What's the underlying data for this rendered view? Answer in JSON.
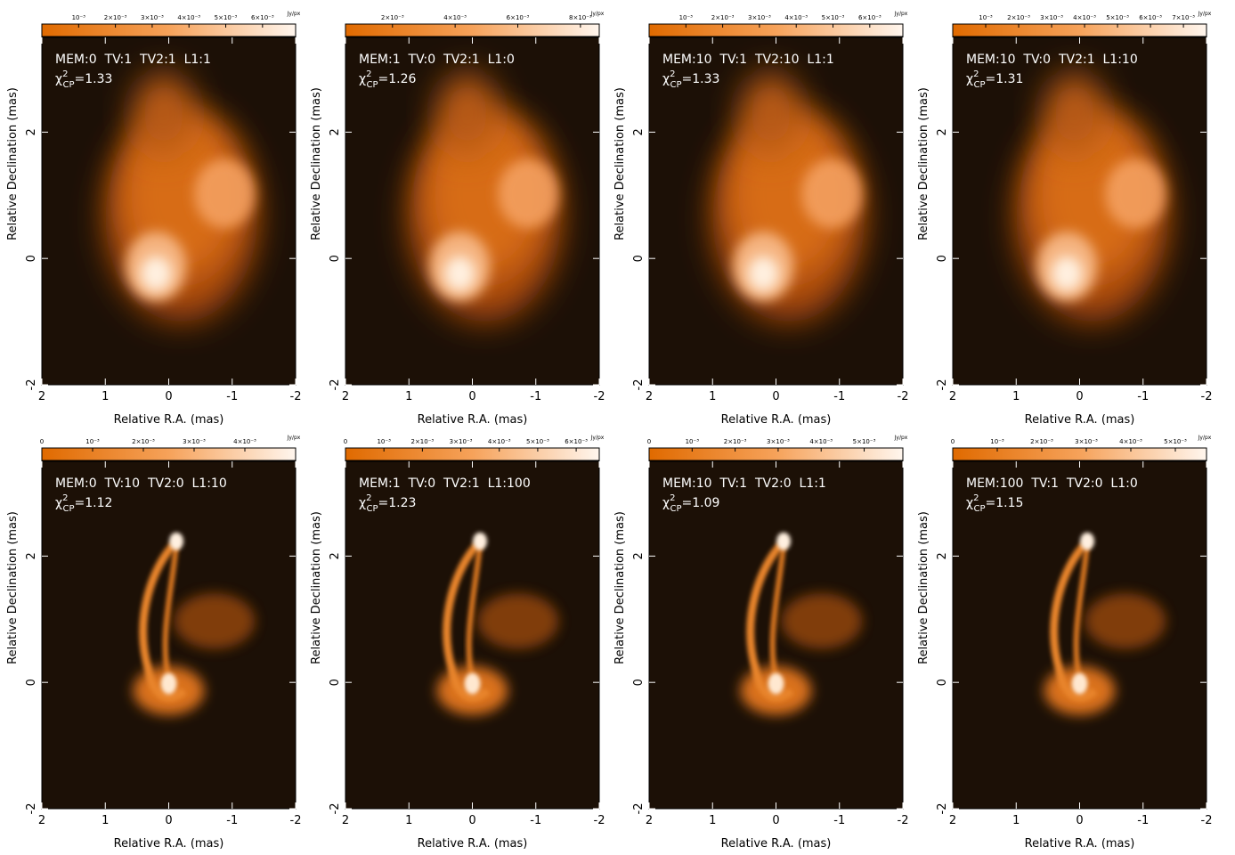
{
  "shared": {
    "stat_symbol": "χ",
    "stat_sup": "2",
    "stat_sub": "CP",
    "stat_sep": "="
  },
  "chart_data": [
    {
      "type": "image",
      "annotation": "MEM:0  TV:1  TV2:1  L1:1",
      "chi2_cp": 1.33,
      "xlabel": "Relative R.A. (mas)",
      "ylabel": "Relative Declination (mas)",
      "xlim": [
        2,
        -2
      ],
      "ylim": [
        -2,
        3.5
      ],
      "xticks": [
        2,
        1,
        0,
        -1,
        -2
      ],
      "yticks": [
        -2,
        0,
        2
      ],
      "colorbar": {
        "unit": "Jy/px",
        "lim": [
          0,
          0.0069
        ],
        "ticks": [
          {
            "value": 0.001,
            "label": "10⁻³"
          },
          {
            "value": 0.002,
            "label": "2×10⁻³"
          },
          {
            "value": 0.003,
            "label": "3×10⁻³"
          },
          {
            "value": 0.004,
            "label": "4×10⁻³"
          },
          {
            "value": 0.005,
            "label": "5×10⁻³"
          },
          {
            "value": 0.006,
            "label": "6×10⁻³"
          }
        ]
      }
    },
    {
      "type": "image",
      "annotation": "MEM:1  TV:0  TV2:1  L1:0",
      "chi2_cp": 1.26,
      "xlabel": "Relative R.A. (mas)",
      "ylabel": "Relative Declination (mas)",
      "xlim": [
        2,
        -2
      ],
      "ylim": [
        -2,
        3.5
      ],
      "xticks": [
        2,
        1,
        0,
        -1,
        -2
      ],
      "yticks": [
        -2,
        0,
        2
      ],
      "colorbar": {
        "unit": "Jy/px",
        "lim": [
          0.0005,
          0.0086
        ],
        "ticks": [
          {
            "value": 0.002,
            "label": "2×10⁻³"
          },
          {
            "value": 0.004,
            "label": "4×10⁻³"
          },
          {
            "value": 0.006,
            "label": "6×10⁻³"
          },
          {
            "value": 0.008,
            "label": "8×10⁻³"
          }
        ]
      }
    },
    {
      "type": "image",
      "annotation": "MEM:10  TV:1  TV2:10  L1:1",
      "chi2_cp": 1.33,
      "xlabel": "Relative R.A. (mas)",
      "ylabel": "Relative Declination (mas)",
      "xlim": [
        2,
        -2
      ],
      "ylim": [
        -2,
        3.5
      ],
      "xticks": [
        2,
        1,
        0,
        -1,
        -2
      ],
      "yticks": [
        -2,
        0,
        2
      ],
      "colorbar": {
        "unit": "Jy/px",
        "lim": [
          0,
          0.0069
        ],
        "ticks": [
          {
            "value": 0.001,
            "label": "10⁻³"
          },
          {
            "value": 0.002,
            "label": "2×10⁻³"
          },
          {
            "value": 0.003,
            "label": "3×10⁻³"
          },
          {
            "value": 0.004,
            "label": "4×10⁻³"
          },
          {
            "value": 0.005,
            "label": "5×10⁻³"
          },
          {
            "value": 0.006,
            "label": "6×10⁻³"
          }
        ]
      }
    },
    {
      "type": "image",
      "annotation": "MEM:10  TV:0  TV2:1  L1:10",
      "chi2_cp": 1.31,
      "xlabel": "Relative R.A. (mas)",
      "ylabel": "Relative Declination (mas)",
      "xlim": [
        2,
        -2
      ],
      "ylim": [
        -2,
        3.5
      ],
      "xticks": [
        2,
        1,
        0,
        -1,
        -2
      ],
      "yticks": [
        -2,
        0,
        2
      ],
      "colorbar": {
        "unit": "Jy/px",
        "lim": [
          0,
          0.0077
        ],
        "ticks": [
          {
            "value": 0.001,
            "label": "10⁻³"
          },
          {
            "value": 0.002,
            "label": "2×10⁻³"
          },
          {
            "value": 0.003,
            "label": "3×10⁻³"
          },
          {
            "value": 0.004,
            "label": "4×10⁻³"
          },
          {
            "value": 0.005,
            "label": "5×10⁻³"
          },
          {
            "value": 0.006,
            "label": "6×10⁻³"
          },
          {
            "value": 0.007,
            "label": "7×10⁻³"
          }
        ]
      }
    },
    {
      "type": "jet",
      "annotation": "MEM:0  TV:10  TV2:0  L1:10",
      "chi2_cp": 1.12,
      "xlabel": "Relative R.A. (mas)",
      "ylabel": "Relative Declination (mas)",
      "xlim": [
        2,
        -2
      ],
      "ylim": [
        -2,
        3.5
      ],
      "xticks": [
        2,
        1,
        0,
        -1,
        -2
      ],
      "yticks": [
        -2,
        0,
        2
      ],
      "colorbar": {
        "unit": "Jy/px",
        "lim": [
          0,
          0.005
        ],
        "ticks": [
          0,
          {
            "value": 0.001,
            "label": "10⁻³"
          },
          {
            "value": 0.002,
            "label": "2×10⁻³"
          },
          {
            "value": 0.003,
            "label": "3×10⁻³"
          },
          {
            "value": 0.004,
            "label": "4×10⁻³"
          }
        ]
      }
    },
    {
      "type": "jet",
      "annotation": "MEM:1  TV:0  TV2:1  L1:100",
      "chi2_cp": 1.23,
      "xlabel": "Relative R.A. (mas)",
      "ylabel": "Relative Declination (mas)",
      "xlim": [
        2,
        -2
      ],
      "ylim": [
        -2,
        3.5
      ],
      "xticks": [
        2,
        1,
        0,
        -1,
        -2
      ],
      "yticks": [
        -2,
        0,
        2
      ],
      "colorbar": {
        "unit": "Jy/px",
        "lim": [
          0,
          0.0066
        ],
        "ticks": [
          0,
          {
            "value": 0.001,
            "label": "10⁻³"
          },
          {
            "value": 0.002,
            "label": "2×10⁻³"
          },
          {
            "value": 0.003,
            "label": "3×10⁻³"
          },
          {
            "value": 0.004,
            "label": "4×10⁻³"
          },
          {
            "value": 0.005,
            "label": "5×10⁻³"
          },
          {
            "value": 0.006,
            "label": "6×10⁻³"
          }
        ]
      }
    },
    {
      "type": "jet",
      "annotation": "MEM:10  TV:1  TV2:0  L1:1",
      "chi2_cp": 1.09,
      "xlabel": "Relative R.A. (mas)",
      "ylabel": "Relative Declination (mas)",
      "xlim": [
        2,
        -2
      ],
      "ylim": [
        -2,
        3.5
      ],
      "xticks": [
        2,
        1,
        0,
        -1,
        -2
      ],
      "yticks": [
        -2,
        0,
        2
      ],
      "colorbar": {
        "unit": "Jy/px",
        "lim": [
          0,
          0.0059
        ],
        "ticks": [
          0,
          {
            "value": 0.001,
            "label": "10⁻³"
          },
          {
            "value": 0.002,
            "label": "2×10⁻³"
          },
          {
            "value": 0.003,
            "label": "3×10⁻³"
          },
          {
            "value": 0.004,
            "label": "4×10⁻³"
          },
          {
            "value": 0.005,
            "label": "5×10⁻³"
          }
        ]
      }
    },
    {
      "type": "jet",
      "annotation": "MEM:100  TV:1  TV2:0  L1:0",
      "chi2_cp": 1.15,
      "xlabel": "Relative R.A. (mas)",
      "ylabel": "Relative Declination (mas)",
      "xlim": [
        2,
        -2
      ],
      "ylim": [
        -2,
        3.5
      ],
      "xticks": [
        2,
        1,
        0,
        -1,
        -2
      ],
      "yticks": [
        -2,
        0,
        2
      ],
      "colorbar": {
        "unit": "Jy/px",
        "lim": [
          0,
          0.0057
        ],
        "ticks": [
          0,
          {
            "value": 0.001,
            "label": "10⁻³"
          },
          {
            "value": 0.002,
            "label": "2×10⁻³"
          },
          {
            "value": 0.003,
            "label": "3×10⁻³"
          },
          {
            "value": 0.004,
            "label": "4×10⁻³"
          },
          {
            "value": 0.005,
            "label": "5×10⁻³"
          }
        ]
      }
    }
  ]
}
